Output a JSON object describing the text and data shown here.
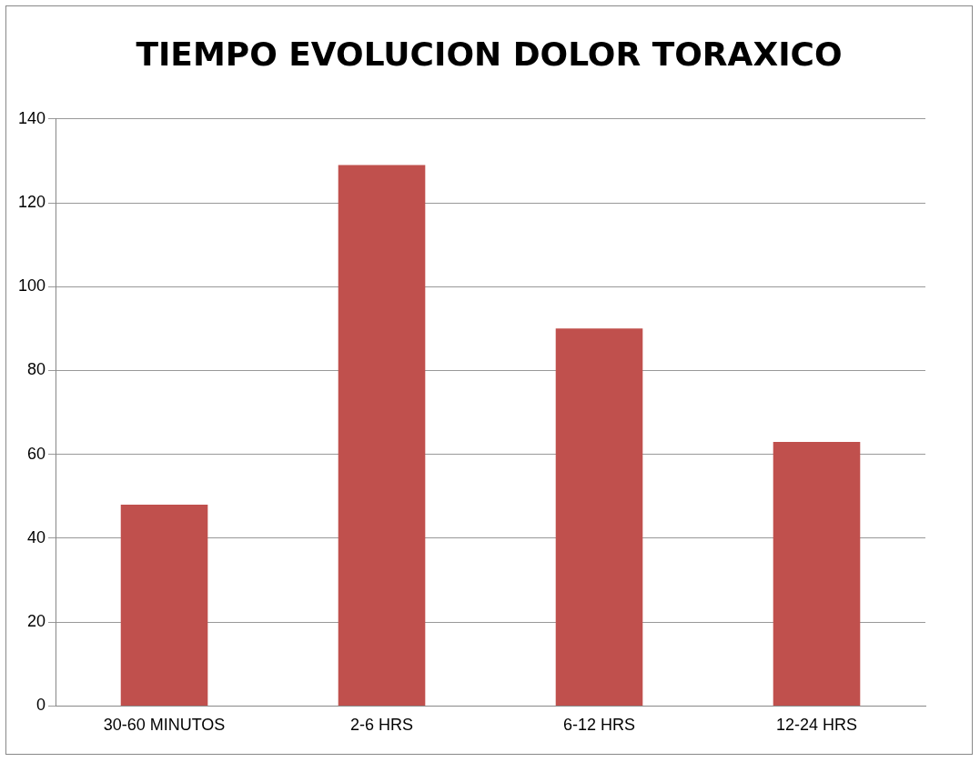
{
  "chart_data": {
    "type": "bar",
    "title": "TIEMPO EVOLUCION DOLOR TORAXICO",
    "categories": [
      "30-60 MINUTOS",
      "2-6 HRS",
      "6-12 HRS",
      "12-24 HRS"
    ],
    "values": [
      48,
      129,
      90,
      63
    ],
    "color": "#c0504d",
    "ylim": [
      0,
      140
    ],
    "yticks": [
      0,
      20,
      40,
      60,
      80,
      100,
      120,
      140
    ],
    "grid": "y"
  }
}
